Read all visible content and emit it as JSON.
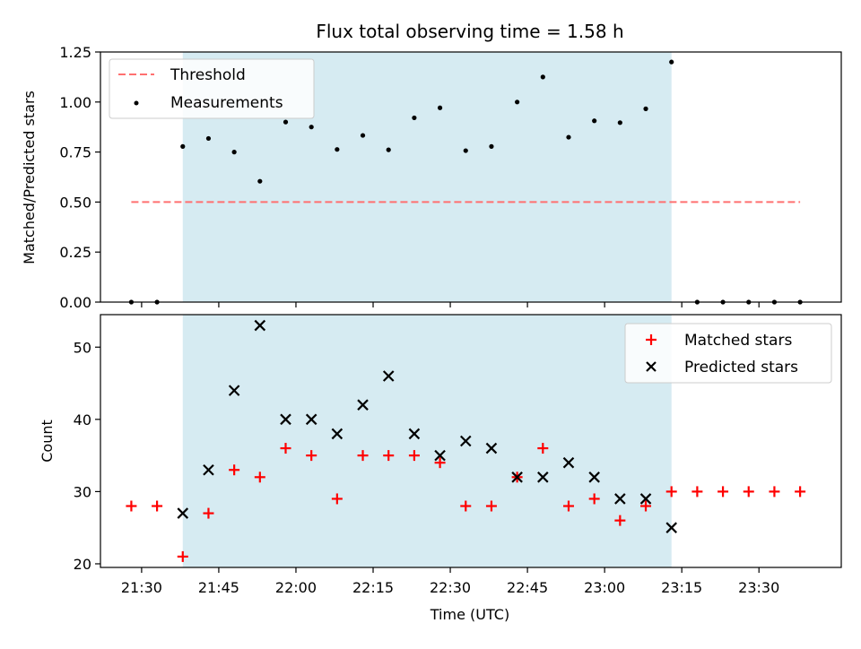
{
  "chart_data": [
    {
      "type": "scatter",
      "title": "Flux total observing time = 1.58 h",
      "xlabel": "",
      "ylabel": "Matched/Predicted stars",
      "xlim": [
        "21:22",
        "23:46"
      ],
      "ylim": [
        0,
        1.25
      ],
      "y_ticks": [
        "0.00",
        "0.25",
        "0.50",
        "0.75",
        "1.00",
        "1.25"
      ],
      "shaded_region": {
        "x_start": "21:38",
        "x_end": "23:13",
        "color": "#add8e6"
      },
      "threshold": {
        "name": "Threshold",
        "y": 0.5,
        "x_start": "21:28",
        "x_end": "23:38",
        "color": "#ff7070"
      },
      "legend": {
        "placement": "upper-left"
      },
      "series": [
        {
          "name": "Measurements",
          "color": "#000000",
          "x": [
            "21:28",
            "21:33",
            "21:38",
            "21:43",
            "21:48",
            "21:53",
            "21:58",
            "22:03",
            "22:08",
            "22:13",
            "22:18",
            "22:23",
            "22:28",
            "22:33",
            "22:38",
            "22:43",
            "22:48",
            "22:53",
            "22:58",
            "23:03",
            "23:08",
            "23:13",
            "23:18",
            "23:23",
            "23:28",
            "23:33",
            "23:38"
          ],
          "y": [
            0,
            0,
            0.778,
            0.818,
            0.75,
            0.604,
            0.9,
            0.875,
            0.763,
            0.833,
            0.761,
            0.921,
            0.971,
            0.757,
            0.778,
            1.0,
            1.125,
            0.824,
            0.906,
            0.897,
            0.966,
            1.2,
            0,
            0,
            0,
            0,
            0
          ]
        }
      ]
    },
    {
      "type": "scatter",
      "title": "",
      "xlabel": "Time (UTC)",
      "ylabel": "Count",
      "xlim": [
        "21:22",
        "23:46"
      ],
      "ylim": [
        19.5,
        54.5
      ],
      "y_ticks": [
        "20",
        "30",
        "40",
        "50"
      ],
      "x_ticks": [
        "21:30",
        "21:45",
        "22:00",
        "22:15",
        "22:30",
        "22:45",
        "23:00",
        "23:15",
        "23:30"
      ],
      "shaded_region": {
        "x_start": "21:38",
        "x_end": "23:13",
        "color": "#add8e6"
      },
      "legend": {
        "placement": "upper-right"
      },
      "series": [
        {
          "name": "Matched stars",
          "marker": "plus",
          "color": "#ff0000",
          "x": [
            "21:28",
            "21:33",
            "21:38",
            "21:43",
            "21:48",
            "21:53",
            "21:58",
            "22:03",
            "22:08",
            "22:13",
            "22:18",
            "22:23",
            "22:28",
            "22:33",
            "22:38",
            "22:43",
            "22:48",
            "22:53",
            "22:58",
            "23:03",
            "23:08",
            "23:13",
            "23:18",
            "23:23",
            "23:28",
            "23:33",
            "23:38"
          ],
          "y": [
            28,
            28,
            21,
            27,
            33,
            32,
            36,
            35,
            29,
            35,
            35,
            35,
            34,
            28,
            28,
            32,
            36,
            28,
            29,
            26,
            28,
            30,
            30,
            30,
            30,
            30,
            30
          ]
        },
        {
          "name": "Predicted stars",
          "marker": "x",
          "color": "#000000",
          "x": [
            "21:38",
            "21:43",
            "21:48",
            "21:53",
            "21:58",
            "22:03",
            "22:08",
            "22:13",
            "22:18",
            "22:23",
            "22:28",
            "22:33",
            "22:38",
            "22:43",
            "22:48",
            "22:53",
            "22:58",
            "23:03",
            "23:08",
            "23:13"
          ],
          "y": [
            27,
            33,
            44,
            53,
            40,
            40,
            38,
            42,
            46,
            38,
            35,
            37,
            36,
            32,
            32,
            34,
            32,
            29,
            29,
            25
          ]
        }
      ]
    }
  ]
}
